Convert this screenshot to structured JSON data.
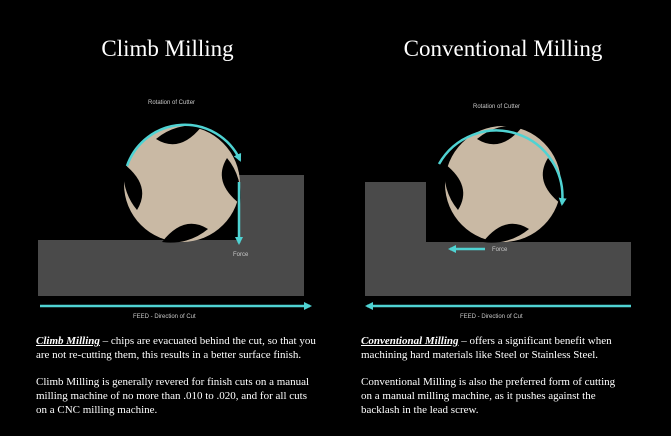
{
  "colors": {
    "background": "#000000",
    "workpiece": "#4a4a4a",
    "cutter": "#c9b9a4",
    "arrow": "#4fd3d3",
    "text": "#ffffff"
  },
  "left": {
    "title": "Climb Milling",
    "rotation_label": "Rotation of Cutter",
    "force_label": "Force",
    "feed_label": "FEED - Direction of Cut",
    "para1_lead": "Climb Milling",
    "para1_line1_rest": " – chips are evacuated behind the cut, so that you",
    "para1_line2": "are not re-cutting them, this results in a better surface finish.",
    "para2_line1": "Climb Milling is generally revered for finish cuts on a manual",
    "para2_line2": "milling machine of no more than .010 to .020, and for all cuts",
    "para2_line3": "on a CNC milling machine."
  },
  "right": {
    "title": "Conventional Milling",
    "rotation_label": "Rotation of Cutter",
    "force_label": "Force",
    "feed_label": "FEED - Direction of Cut",
    "para1_lead": "Conventional Milling",
    "para1_line1_rest": " – offers a significant benefit when",
    "para1_line2": "machining hard materials like Steel or Stainless Steel.",
    "para2_line1": "Conventional Milling is also the preferred form of cutting",
    "para2_line2": "on a manual milling machine, as it pushes against the",
    "para2_line3": "backlash in the lead screw."
  }
}
